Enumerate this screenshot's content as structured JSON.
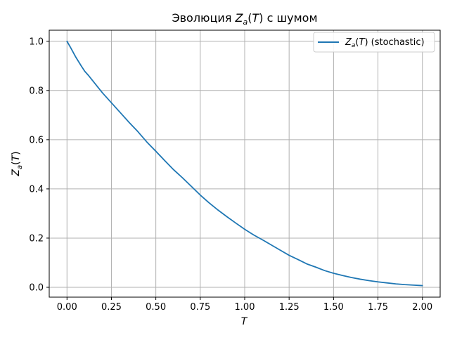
{
  "chart_data": {
    "type": "line",
    "title": {
      "prefix": "Эволюция ",
      "math_main": "Z",
      "math_sub": "a",
      "math_paren_open": "(",
      "math_arg": "T",
      "math_paren_close": ")",
      "suffix": " с шумом"
    },
    "xlabel": "T",
    "ylabel": {
      "math_main": "Z",
      "math_sub": "a",
      "math_paren_open": "(",
      "math_arg": "T",
      "math_paren_close": ")"
    },
    "xlim": [
      -0.1,
      2.1
    ],
    "ylim": [
      -0.04,
      1.045
    ],
    "x_ticks": [
      0.0,
      0.25,
      0.5,
      0.75,
      1.0,
      1.25,
      1.5,
      1.75,
      2.0
    ],
    "x_tick_labels": [
      "0.00",
      "0.25",
      "0.50",
      "0.75",
      "1.00",
      "1.25",
      "1.50",
      "1.75",
      "2.00"
    ],
    "y_ticks": [
      0.0,
      0.2,
      0.4,
      0.6,
      0.8,
      1.0
    ],
    "y_tick_labels": [
      "0.0",
      "0.2",
      "0.4",
      "0.6",
      "0.8",
      "1.0"
    ],
    "grid": true,
    "legend_position": "top-right",
    "series": [
      {
        "name": {
          "math_main": "Z",
          "math_sub": "a",
          "math_paren_open": "(",
          "math_arg": "T",
          "math_paren_close": ")",
          "suffix": " (stochastic)"
        },
        "color": "#1f77b4",
        "x": [
          0.0,
          0.02,
          0.05,
          0.08,
          0.1,
          0.12,
          0.15,
          0.2,
          0.25,
          0.3,
          0.35,
          0.4,
          0.45,
          0.5,
          0.55,
          0.6,
          0.65,
          0.7,
          0.75,
          0.8,
          0.85,
          0.9,
          0.95,
          1.0,
          1.05,
          1.1,
          1.15,
          1.2,
          1.25,
          1.3,
          1.35,
          1.4,
          1.45,
          1.5,
          1.55,
          1.6,
          1.65,
          1.7,
          1.75,
          1.8,
          1.85,
          1.9,
          1.95,
          2.0
        ],
        "y": [
          1.0,
          0.975,
          0.935,
          0.9,
          0.878,
          0.862,
          0.835,
          0.79,
          0.75,
          0.71,
          0.67,
          0.632,
          0.59,
          0.553,
          0.515,
          0.478,
          0.445,
          0.41,
          0.375,
          0.343,
          0.314,
          0.287,
          0.261,
          0.236,
          0.213,
          0.193,
          0.172,
          0.151,
          0.13,
          0.113,
          0.095,
          0.082,
          0.068,
          0.057,
          0.048,
          0.04,
          0.033,
          0.027,
          0.022,
          0.018,
          0.014,
          0.011,
          0.009,
          0.007
        ]
      }
    ]
  }
}
